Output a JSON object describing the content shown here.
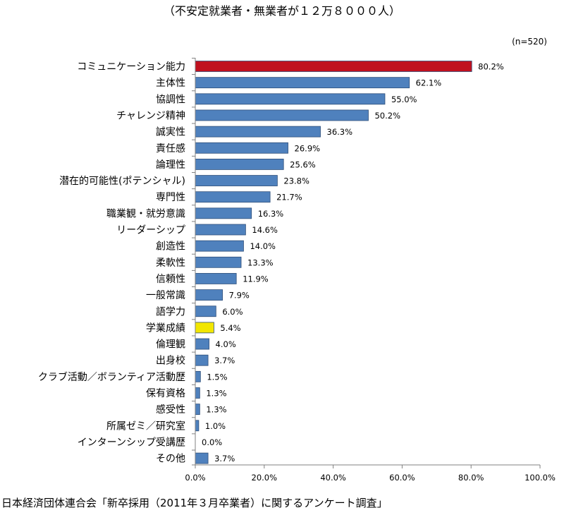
{
  "subtitle": "（不安定就業者・無業者が１２万８０００人）",
  "source": "日本経済団体連合会「新卒採用（2011年３月卒業者）に関するアンケート調査」",
  "chart_data": {
    "type": "bar",
    "orientation": "horizontal",
    "note": "(n=520)",
    "categories": [
      "コミュニケーション能力",
      "主体性",
      "協調性",
      "チャレンジ精神",
      "誠実性",
      "責任感",
      "論理性",
      "潜在的可能性(ポテンシャル)",
      "専門性",
      "職業観・就労意識",
      "リーダーシップ",
      "創造性",
      "柔軟性",
      "信頼性",
      "一般常識",
      "語学力",
      "学業成績",
      "倫理観",
      "出身校",
      "クラブ活動／ボランティア活動歴",
      "保有資格",
      "感受性",
      "所属ゼミ／研究室",
      "インターンシップ受講歴",
      "その他"
    ],
    "values": [
      80.2,
      62.1,
      55.0,
      50.2,
      36.3,
      26.9,
      25.6,
      23.8,
      21.7,
      16.3,
      14.6,
      14.0,
      13.3,
      11.9,
      7.9,
      6.0,
      5.4,
      4.0,
      3.7,
      1.5,
      1.3,
      1.3,
      1.0,
      0.0,
      3.7
    ],
    "value_labels": [
      "80.2%",
      "62.1%",
      "55.0%",
      "50.2%",
      "36.3%",
      "26.9%",
      "25.6%",
      "23.8%",
      "21.7%",
      "16.3%",
      "14.6%",
      "14.0%",
      "13.3%",
      "11.9%",
      "7.9%",
      "6.0%",
      "5.4%",
      "4.0%",
      "3.7%",
      "1.5%",
      "1.3%",
      "1.3%",
      "1.0%",
      "0.0%",
      "3.7%"
    ],
    "xlim": [
      0,
      100
    ],
    "xticks": [
      0,
      20,
      40,
      60,
      80,
      100
    ],
    "xtick_labels": [
      "0.0%",
      "20.0%",
      "40.0%",
      "60.0%",
      "80.0%",
      "100.0%"
    ],
    "grid": false,
    "colors": {
      "default": "#4f81bd",
      "highlight_top": "#c0111f",
      "highlight_grades": "#f2e600",
      "outline": "#2f4f7a"
    },
    "highlight": {
      "0": "highlight_top",
      "16": "highlight_grades"
    }
  }
}
